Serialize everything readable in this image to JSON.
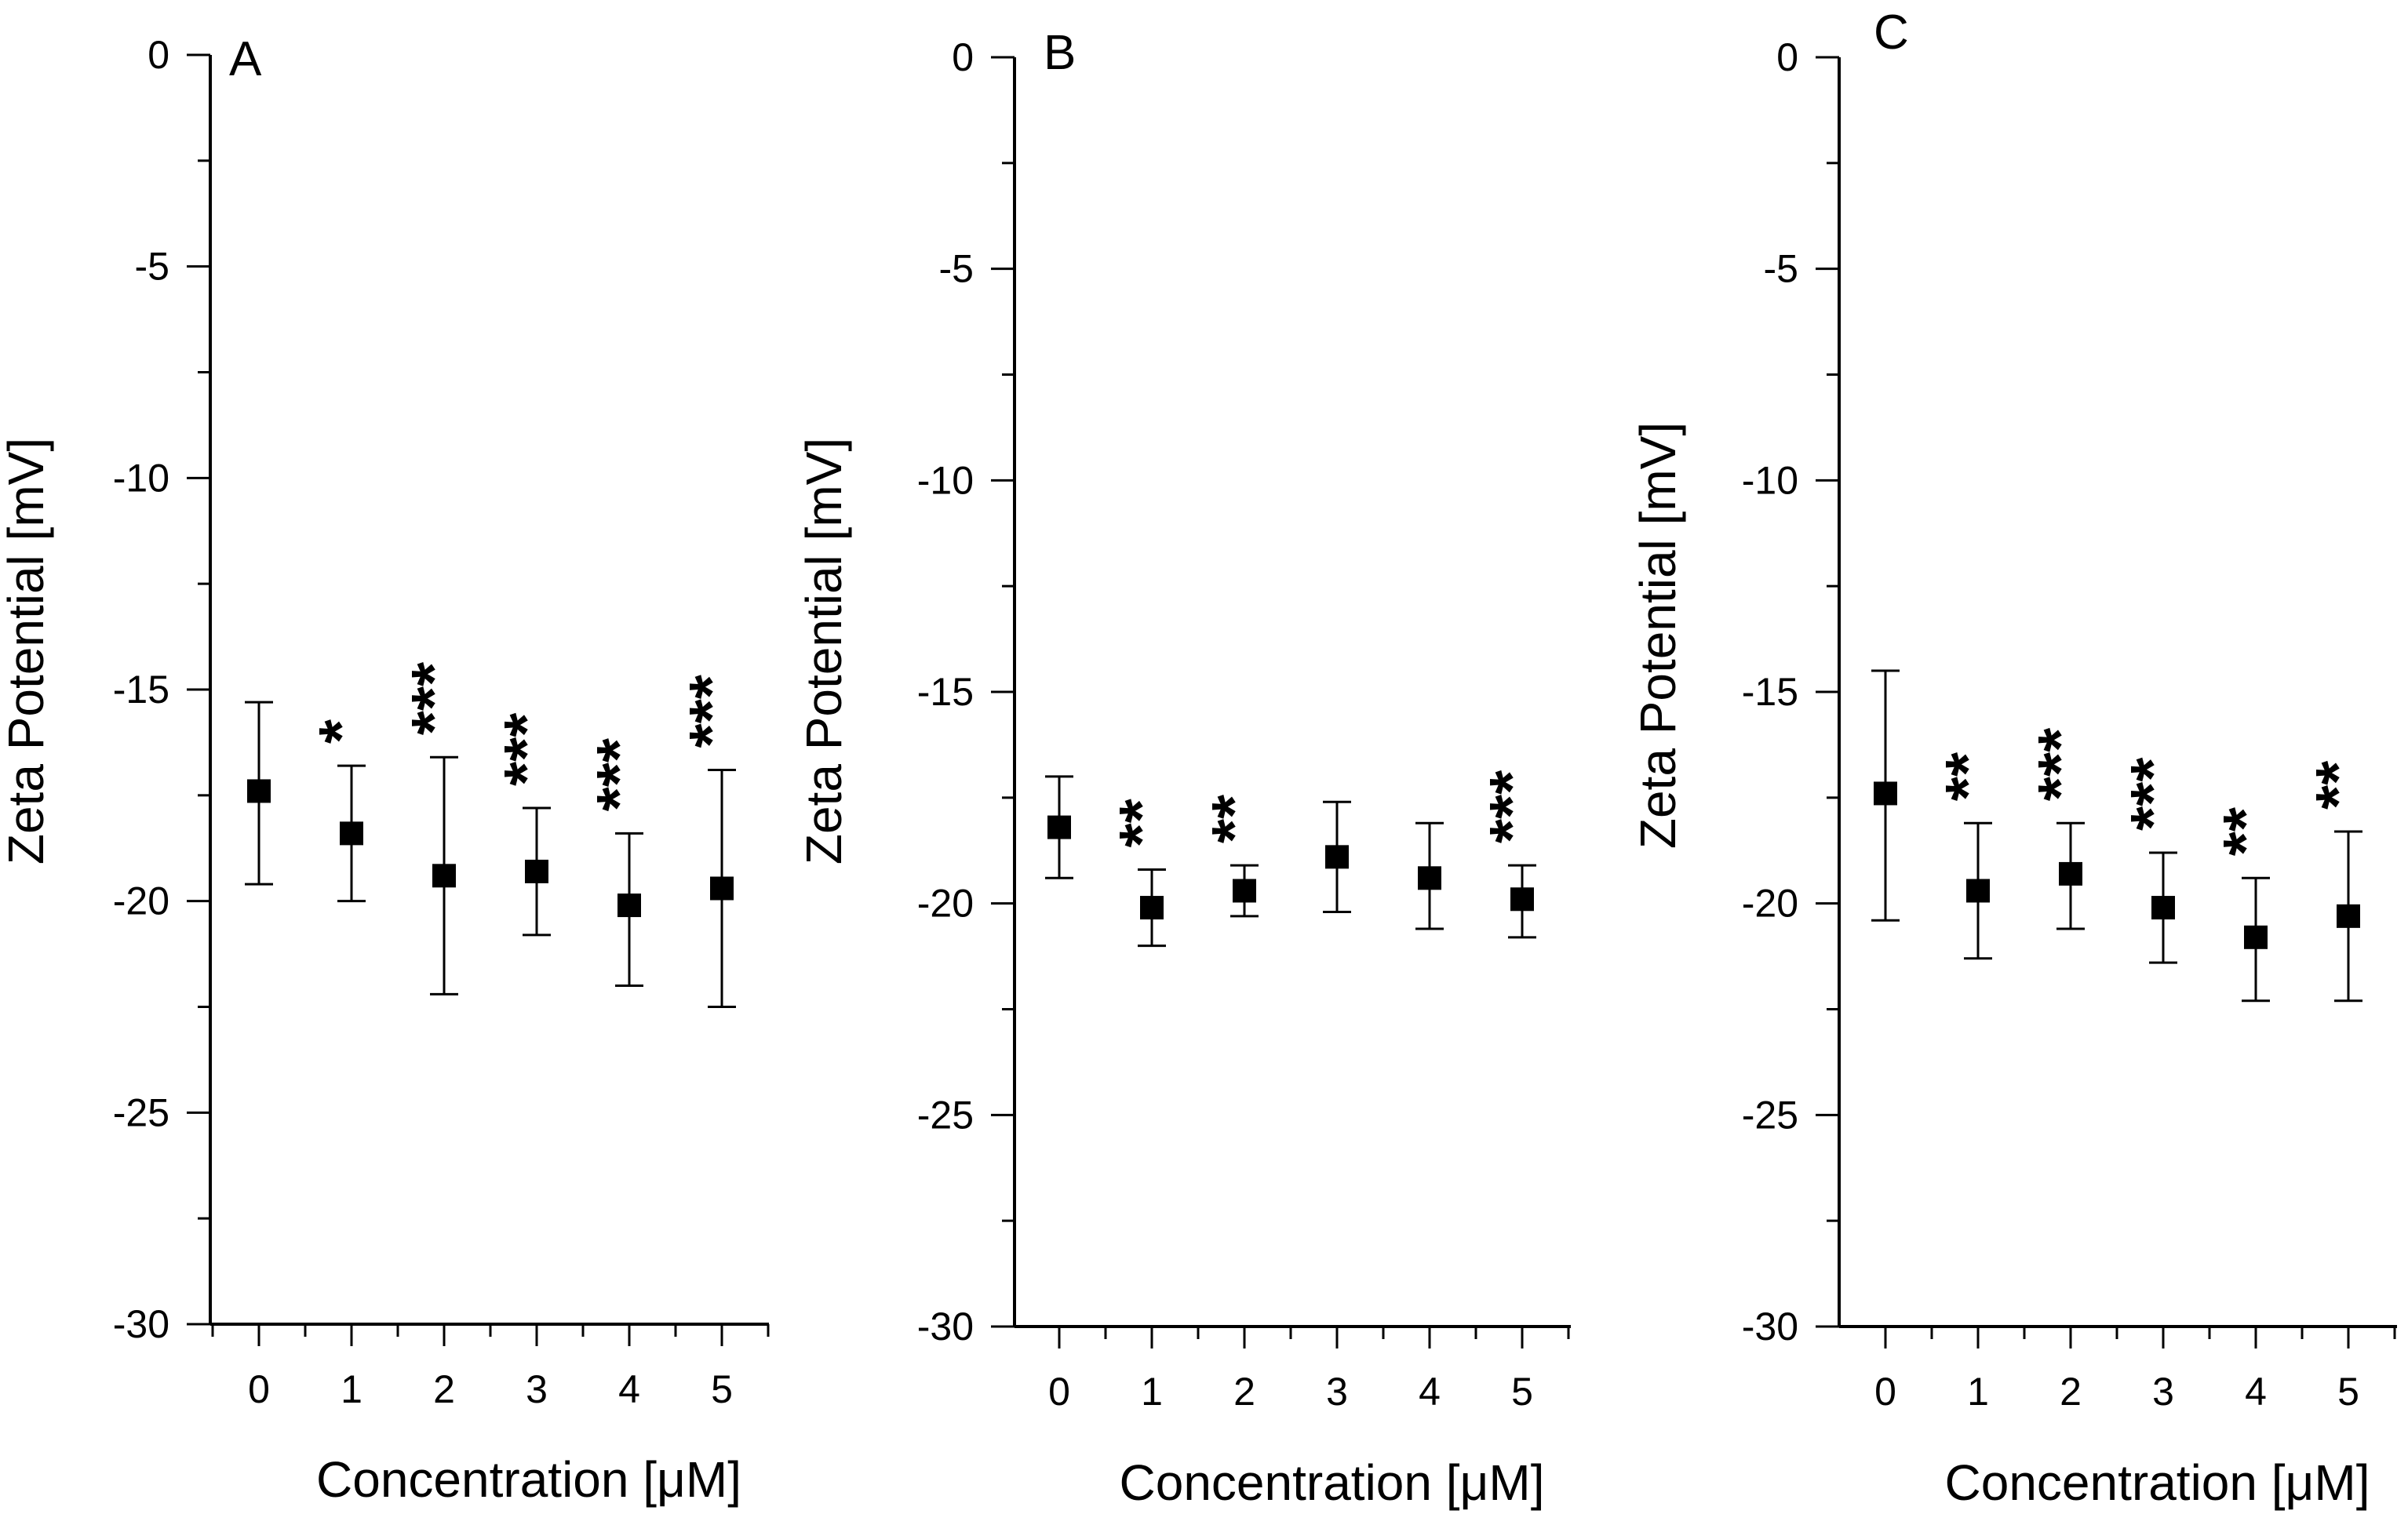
{
  "chart_data": [
    {
      "type": "scatter",
      "panel_label": "A",
      "xlabel": "Concentration [μM]",
      "ylabel": "Zeta Potential [mV]",
      "ylim": [
        -30,
        0
      ],
      "yticks": [
        0,
        -5,
        -10,
        -15,
        -20,
        -25,
        -30
      ],
      "x": [
        0,
        1,
        2,
        3,
        4,
        5
      ],
      "mean": [
        -17.4,
        -18.4,
        -19.4,
        -19.3,
        -20.1,
        -19.7
      ],
      "error_low": [
        -19.6,
        -20.0,
        -22.2,
        -20.8,
        -22.0,
        -22.5
      ],
      "error_high": [
        -15.3,
        -16.8,
        -16.6,
        -17.8,
        -18.4,
        -16.9
      ],
      "significance": [
        "",
        "*",
        "***",
        "***",
        "***",
        "***"
      ]
    },
    {
      "type": "scatter",
      "panel_label": "B",
      "xlabel": "Concentration [μM]",
      "ylabel": "Zeta Potential [mV]",
      "ylim": [
        -30,
        0
      ],
      "yticks": [
        0,
        -5,
        -10,
        -15,
        -20,
        -25,
        -30
      ],
      "x": [
        0,
        1,
        2,
        3,
        4,
        5
      ],
      "mean": [
        -18.2,
        -20.1,
        -19.7,
        -18.9,
        -19.4,
        -19.9
      ],
      "error_low": [
        -19.4,
        -21.0,
        -20.3,
        -20.2,
        -20.6,
        -20.8
      ],
      "error_high": [
        -17.0,
        -19.2,
        -19.1,
        -17.6,
        -18.1,
        -19.1
      ],
      "significance": [
        "",
        "**",
        "**",
        "",
        "",
        "***"
      ]
    },
    {
      "type": "scatter",
      "panel_label": "C",
      "xlabel": "Concentration [μM]",
      "ylabel": "Zeta Potential [mV]",
      "ylim": [
        -30,
        0
      ],
      "yticks": [
        0,
        -5,
        -10,
        -15,
        -20,
        -25,
        -30
      ],
      "x": [
        0,
        1,
        2,
        3,
        4,
        5
      ],
      "mean": [
        -17.4,
        -19.7,
        -19.3,
        -20.1,
        -20.8,
        -20.3
      ],
      "error_low": [
        -20.4,
        -21.3,
        -20.6,
        -21.4,
        -22.3,
        -22.3
      ],
      "error_high": [
        -14.5,
        -18.1,
        -18.1,
        -18.8,
        -19.4,
        -18.3
      ],
      "significance": [
        "",
        "**",
        "***",
        "***",
        "**",
        "**"
      ]
    }
  ]
}
